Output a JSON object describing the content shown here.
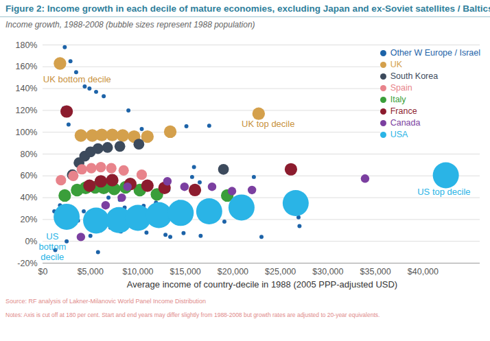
{
  "chart_data": {
    "type": "scatter",
    "title": "Figure 2: Income growth in each decile of mature economies, excluding Japan and ex-Soviet satellites / Baltics",
    "subtitle": "Income growth, 1988-2008 (bubble sizes represent 1988 population)",
    "x_label": "Average income of country-decile in 1988 (2005 PPP-adjusted USD)",
    "source": "Source: RF analysis of Lakner-Milanovic World Panel Income Distribution",
    "notes": "Notes: Axis is cut off at 180 per cent. Start and end years may differ slightly from 1988-2008 but growth rates are adjusted to 20-year equivalents.",
    "xlim": [
      0,
      46000
    ],
    "xticks": [
      {
        "value": 0,
        "label": "$0"
      },
      {
        "value": 5000,
        "label": "$5,000"
      },
      {
        "value": 10000,
        "label": "$10,000"
      },
      {
        "value": 15000,
        "label": "$15,000"
      },
      {
        "value": 20000,
        "label": "$20,000"
      },
      {
        "value": 25000,
        "label": "$25,000"
      },
      {
        "value": 30000,
        "label": "$30,000"
      },
      {
        "value": 35000,
        "label": "$35,000"
      },
      {
        "value": 40000,
        "label": "$40,000"
      }
    ],
    "ylim": [
      -20,
      180
    ],
    "yticks": [
      {
        "value": -20,
        "label": "-20%"
      },
      {
        "value": 0,
        "label": "0%"
      },
      {
        "value": 20,
        "label": "20%"
      },
      {
        "value": 40,
        "label": "40%"
      },
      {
        "value": 60,
        "label": "60%"
      },
      {
        "value": 80,
        "label": "80%"
      },
      {
        "value": 100,
        "label": "100%"
      },
      {
        "value": 120,
        "label": "120%"
      },
      {
        "value": 140,
        "label": "140%"
      },
      {
        "value": 160,
        "label": "160%"
      },
      {
        "value": 180,
        "label": "180%"
      }
    ],
    "grid": "y",
    "legend": "top-right",
    "marker": "circle",
    "series": [
      {
        "name": "Other W Europe / Israel",
        "color": "#1d63a8",
        "x": [
          2300,
          2900,
          3500,
          4400,
          4900,
          5600,
          6400,
          9000,
          17500,
          2700,
          2200,
          1700,
          2500,
          1300,
          5800,
          5000,
          6100,
          7100,
          8200,
          10000,
          10900,
          12900,
          13400,
          14800,
          16600,
          23000,
          26900,
          27000,
          17500,
          19100,
          20300,
          21200,
          22200,
          15700,
          15900,
          16500,
          13200,
          14300,
          11600,
          9200,
          8100,
          8300,
          8600,
          7400,
          6700,
          6400,
          6900,
          4300,
          3700,
          1900,
          1800,
          1200,
          10600,
          11900,
          13800,
          15100,
          10400
        ],
        "values": [
          178,
          165,
          155,
          142,
          140,
          137,
          133,
          120,
          106,
          107,
          122,
          26,
          0,
          -8,
          -10,
          5,
          10,
          12.5,
          9,
          12.5,
          8,
          6,
          4,
          7.5,
          5,
          4,
          22,
          14,
          29,
          18,
          31,
          39,
          59,
          59,
          68,
          54,
          47,
          36,
          26,
          28,
          38,
          64,
          31,
          27.5,
          16,
          32.5,
          40,
          27.5,
          19,
          16,
          33,
          27.5,
          32.5,
          35.5,
          27.5,
          105.5,
          103
        ],
        "sizes": [
          0.6,
          0.6,
          0.6,
          0.6,
          0.6,
          0.6,
          0.6,
          0.6,
          0.6,
          0.6,
          0.6,
          0.6,
          0.6,
          0.6,
          0.6,
          0.6,
          0.6,
          0.6,
          0.6,
          0.6,
          0.6,
          0.6,
          0.6,
          0.6,
          0.6,
          0.6,
          0.6,
          0.6,
          0.6,
          0.6,
          0.6,
          0.6,
          0.6,
          0.6,
          0.6,
          0.6,
          0.6,
          0.6,
          0.6,
          0.6,
          0.6,
          0.6,
          0.6,
          0.6,
          0.6,
          0.6,
          0.6,
          0.6,
          0.6,
          0.6,
          0.6,
          0.6,
          0.6,
          0.6,
          0.6,
          0.6,
          0.6
        ]
      },
      {
        "name": "UK",
        "color": "#d4a04c",
        "x": [
          1800,
          4000,
          5200,
          6200,
          7300,
          8400,
          9600,
          11000,
          13400,
          22700
        ],
        "values": [
          163,
          97,
          97,
          97.5,
          97.5,
          97,
          96,
          96,
          100.5,
          117
        ],
        "sizes": [
          5.7,
          5.7,
          5.7,
          5.7,
          5.7,
          5.7,
          5.7,
          5.7,
          5.7,
          5.7
        ]
      },
      {
        "name": "South Korea",
        "color": "#3c4a5c",
        "x": [
          3100,
          3800,
          4400,
          5000,
          5800,
          6800,
          8100,
          10100,
          19000
        ],
        "values": [
          61,
          72,
          78,
          82,
          85,
          86,
          87,
          89,
          66
        ],
        "sizes": [
          4.2,
          4.2,
          4.2,
          4.2,
          4.2,
          4.2,
          4.2,
          4.2,
          4.2
        ]
      },
      {
        "name": "Spain",
        "color": "#e8838b",
        "x": [
          1900,
          3200,
          4100,
          5100,
          6100,
          7200,
          8500,
          10400
        ],
        "values": [
          56,
          60,
          66,
          67,
          68,
          67,
          65,
          61
        ],
        "sizes": [
          3.9,
          3.9,
          3.9,
          3.9,
          3.9,
          3.9,
          3.9,
          3.9
        ]
      },
      {
        "name": "Italy",
        "color": "#3a9e3a",
        "x": [
          2300,
          3600,
          4500,
          5500,
          6400,
          7500,
          8700,
          10200,
          12000,
          19400
        ],
        "values": [
          42,
          47,
          49,
          49.5,
          49,
          48,
          49.5,
          47,
          43,
          42
        ],
        "sizes": [
          5.7,
          5.7,
          5.7,
          5.7,
          5.7,
          5.7,
          5.7,
          5.7,
          5.7,
          5.7
        ]
      },
      {
        "name": "France",
        "color": "#8c1c2e",
        "x": [
          2500,
          4900,
          6100,
          7300,
          9200,
          11000,
          12800,
          16000,
          26100
        ],
        "values": [
          119,
          51,
          55,
          56,
          52.5,
          51,
          49,
          47,
          66
        ],
        "sizes": [
          5.6,
          5.6,
          5.6,
          5.6,
          5.6,
          5.6,
          5.6,
          5.6,
          5.6
        ]
      },
      {
        "name": "Canada",
        "color": "#7b3fa0",
        "x": [
          4000,
          6600,
          8300,
          8900,
          13100,
          14900,
          17800,
          19900,
          22000,
          33900
        ],
        "values": [
          4,
          33,
          40,
          50,
          55,
          50,
          50,
          46,
          47,
          57.5
        ],
        "sizes": [
          2.6,
          2.6,
          2.6,
          2.6,
          2.6,
          2.6,
          2.6,
          2.6,
          2.6,
          2.6
        ]
      },
      {
        "name": "USA",
        "color": "#2ab4e6",
        "x": [
          2500,
          5600,
          8000,
          10000,
          12200,
          14500,
          17500,
          20900,
          26600,
          42400
        ],
        "values": [
          22.5,
          19,
          19.5,
          21.5,
          24,
          26,
          27.5,
          31,
          35,
          60.5
        ],
        "sizes": [
          24.4,
          24.4,
          24.4,
          24.4,
          24.4,
          24.4,
          24.4,
          24.4,
          24.4,
          24.4
        ]
      }
    ],
    "annotations": [
      {
        "text": "UK bottom decile",
        "x": 3600,
        "y": 149,
        "color": "#c8913c"
      },
      {
        "text": "UK top decile",
        "x": 23700,
        "y": 108,
        "color": "#c8913c"
      },
      {
        "text": "US top decile",
        "x": 42200,
        "y": 45.6,
        "color": "#2ab4e6"
      },
      {
        "text": "US\nbottom\ndecile",
        "x": 1000,
        "y": -5,
        "color": "#2ab4e6"
      }
    ]
  }
}
